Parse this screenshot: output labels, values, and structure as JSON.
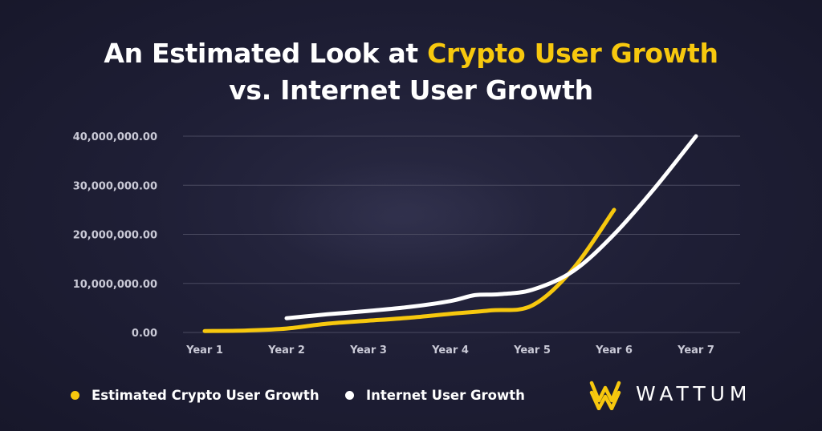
{
  "title": {
    "line1_prefix": "An Estimated Look at ",
    "line1_highlight": "Crypto User Growth",
    "line2": "vs. Internet User Growth"
  },
  "colors": {
    "crypto": "#f7c80e",
    "internet": "#ffffff",
    "grid": "#4a4a60",
    "tick": "#c9c9d6"
  },
  "legend": {
    "crypto_label": "Estimated Crypto User Growth",
    "internet_label": "Internet User Growth"
  },
  "brand": {
    "name": "WATTUM",
    "logo_icon": "wattum-w-logo-icon"
  },
  "chart_data": {
    "type": "line",
    "categories": [
      "Year 1",
      "Year 2",
      "Year 3",
      "Year 4",
      "Year 5",
      "Year 6",
      "Year 7"
    ],
    "y_ticks": [
      "0.00",
      "10,000,000.00",
      "20,000,000.00",
      "30,000,000.00",
      "40,000,000.00"
    ],
    "ylim": [
      0,
      40000000
    ],
    "grid": true,
    "legend_position": "bottom-left",
    "series": [
      {
        "name": "Estimated Crypto User Growth",
        "x": [
          1,
          1.5,
          2,
          2.5,
          3,
          3.5,
          4,
          4.5,
          5,
          5.5,
          6
        ],
        "y": [
          300000,
          400000,
          800000,
          1800000,
          2400000,
          3000000,
          3800000,
          4500000,
          5500000,
          13000000,
          25000000
        ]
      },
      {
        "name": "Internet User Growth",
        "x": [
          2,
          2.5,
          3,
          3.5,
          4,
          4.3,
          4.6,
          5,
          5.5,
          6,
          6.5,
          7
        ],
        "y": [
          2900000,
          3700000,
          4400000,
          5200000,
          6400000,
          7600000,
          7800000,
          8700000,
          12500000,
          20000000,
          29500000,
          40000000
        ]
      }
    ]
  }
}
